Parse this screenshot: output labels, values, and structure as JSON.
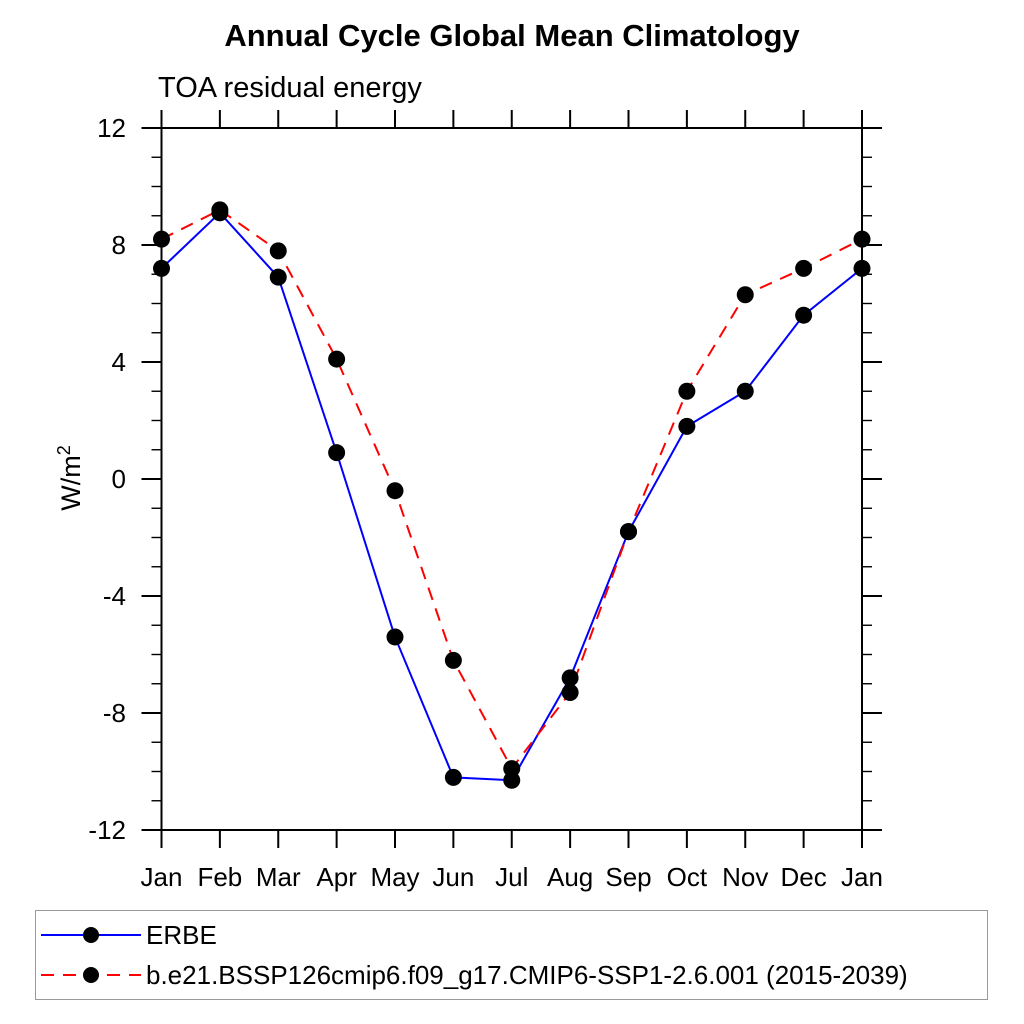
{
  "page": {
    "background": "#ffffff"
  },
  "chart_data": {
    "type": "line",
    "title": "Annual Cycle Global Mean Climatology",
    "subtitle": "TOA residual energy",
    "ylabel": "W/m²",
    "ylabel_base": "W/m",
    "ylabel_exp": "2",
    "xlabel": "",
    "categories": [
      "Jan",
      "Feb",
      "Mar",
      "Apr",
      "May",
      "Jun",
      "Jul",
      "Aug",
      "Sep",
      "Oct",
      "Nov",
      "Dec",
      "Jan"
    ],
    "ylim": [
      -12,
      12
    ],
    "ytick_major": [
      12,
      8,
      4,
      0,
      -4,
      -8,
      -12
    ],
    "ytick_minor_step": 1,
    "grid": false,
    "legend_position": "bottom",
    "axis_color": "#000000",
    "marker": "filled-circle",
    "marker_color": "#000000",
    "series": [
      {
        "name": "ERBE",
        "color": "#0000ff",
        "line_style": "solid",
        "values": [
          7.2,
          9.1,
          6.9,
          0.9,
          -5.4,
          -10.2,
          -10.3,
          -6.8,
          -1.8,
          1.8,
          3.0,
          5.6,
          7.2
        ]
      },
      {
        "name": "b.e21.BSSP126cmip6.f09_g17.CMIP6-SSP1-2.6.001 (2015-2039)",
        "color": "#ff0000",
        "line_style": "dashed",
        "values": [
          8.2,
          9.2,
          7.8,
          4.1,
          -0.4,
          -6.2,
          -9.9,
          -7.3,
          -1.8,
          3.0,
          6.3,
          7.2,
          8.2
        ]
      }
    ]
  }
}
